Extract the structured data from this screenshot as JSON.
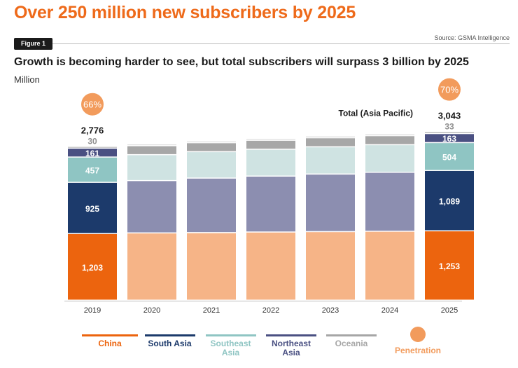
{
  "headline": "Over 250 million new subscribers by 2025",
  "figure_label": "Figure 1",
  "source": "Source: GSMA Intelligence",
  "chart_data": {
    "type": "bar",
    "stacked": true,
    "title": "Growth is becoming harder to see, but total subscribers will surpass 3 billion by 2025",
    "unit": "Million",
    "categories": [
      "2019",
      "2020",
      "2021",
      "2022",
      "2023",
      "2024",
      "2025"
    ],
    "series": [
      {
        "name": "China",
        "color": "#ec640e",
        "faded_color": "#f6b487",
        "values": [
          1203,
          1215,
          1220,
          1231,
          1238,
          1245,
          1253
        ]
      },
      {
        "name": "South Asia",
        "color": "#1c3a6b",
        "faded_color": "#8c8eb0",
        "values": [
          925,
          945,
          985,
          1010,
          1040,
          1065,
          1089
        ]
      },
      {
        "name": "Southeast Asia",
        "color": "#8fc5c3",
        "faded_color": "#cfe3e2",
        "values": [
          457,
          468,
          477,
          485,
          492,
          498,
          504
        ]
      },
      {
        "name": "Northeast Asia",
        "color": "#4a5082",
        "faded_color": "#a7a7a7",
        "values": [
          161,
          162,
          162,
          162,
          163,
          163,
          163
        ]
      },
      {
        "name": "Oceania",
        "color": "#a6a6a6",
        "faded_color": "#d4d4d4",
        "values": [
          30,
          30,
          31,
          31,
          32,
          32,
          33
        ]
      }
    ],
    "totals": {
      "2019": 2776,
      "2025": 3043
    },
    "total_label": "Total (Asia Pacific)",
    "penetration": {
      "series_name": "Penetration",
      "color": "#f29b5c",
      "2019": "66%",
      "2025": "70%"
    },
    "highlighted_categories": [
      "2019",
      "2025"
    ],
    "data_labels": {
      "2019": [
        "1,203",
        "925",
        "457",
        "161",
        "30"
      ],
      "2025": [
        "1,253",
        "1,089",
        "504",
        "163",
        "33"
      ]
    },
    "total_labels": {
      "2019": "2,776",
      "2025": "3,043"
    },
    "ylim": [
      0,
      3300
    ],
    "grid": false,
    "legend_position": "bottom"
  },
  "legend": [
    {
      "label": "China",
      "color": "#ec640e"
    },
    {
      "label": "South Asia",
      "color": "#1c3a6b"
    },
    {
      "label": "Southeast Asia",
      "color": "#8fc5c3"
    },
    {
      "label": "Northeast Asia",
      "color": "#4a5082"
    },
    {
      "label": "Oceania",
      "color": "#a6a6a6"
    },
    {
      "label": "Penetration",
      "color": "#f29b5c"
    }
  ]
}
